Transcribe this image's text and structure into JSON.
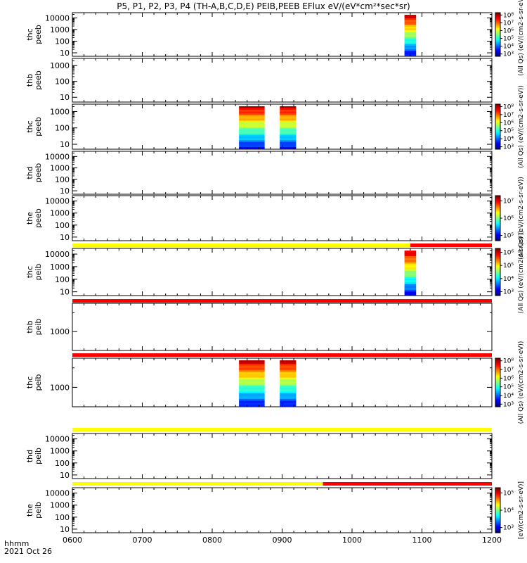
{
  "figure": {
    "title": "P5, P1, P2, P3, P4 (TH-A,B,C,D,E) PEIB,PEEB EFlux eV/(eV*cm²*sec*sr)",
    "time_unit_label": "hhmm",
    "date_label": "2021 Oct 26"
  },
  "chart_data": {
    "type": "heatmap",
    "x_ticks": [
      "0600",
      "0700",
      "0800",
      "0900",
      "1000",
      "1100",
      "1200"
    ],
    "x_range": [
      "0600",
      "1200"
    ],
    "panels": [
      {
        "label": [
          "thc",
          "peeb"
        ],
        "y_ticks": [
          "10",
          "100",
          "1000",
          "10000"
        ],
        "y_scale": "log",
        "colorbar_ticks": [
          "10³",
          "10⁴",
          "10⁵",
          "10⁶",
          "10⁷",
          "10⁸"
        ],
        "colorbar_label": "(All Qs) (eV/(cm2-s-sr-eV))",
        "data_blocks": [
          {
            "start": "1045",
            "end": "1055"
          }
        ]
      },
      {
        "label": [
          "thb",
          "peeb"
        ],
        "y_ticks": [
          "10",
          "100",
          "1000"
        ],
        "y_scale": "log",
        "colorbar_ticks": [],
        "colorbar_label": "",
        "data_blocks": []
      },
      {
        "label": [
          "thc",
          "peeb"
        ],
        "y_ticks": [
          "10",
          "100",
          "1000"
        ],
        "y_scale": "log",
        "colorbar_ticks": [
          "10³",
          "10⁴",
          "10⁵",
          "10⁶",
          "10⁷",
          "10⁸"
        ],
        "colorbar_label": "(All Qs) (eV/(cm2-s-sr-eV))",
        "data_blocks": [
          {
            "start": "0823",
            "end": "0845"
          },
          {
            "start": "0858",
            "end": "0912"
          }
        ]
      },
      {
        "label": [
          "thd",
          "peeb"
        ],
        "y_ticks": [
          "10",
          "100",
          "1000",
          "10000"
        ],
        "y_scale": "log",
        "colorbar_ticks": [],
        "colorbar_label": "",
        "data_blocks": []
      },
      {
        "label": [
          "the",
          "peeb"
        ],
        "y_ticks": [
          "10",
          "100",
          "1000",
          "10000"
        ],
        "y_scale": "log",
        "colorbar_ticks": [
          "10⁵",
          "10⁶",
          "10⁷"
        ],
        "colorbar_label": "(All Qs) (eV/(cm2-s-sr-eV))",
        "data_blocks": []
      },
      {
        "label": [
          "thc",
          "peib"
        ],
        "y_ticks": [
          "10",
          "100",
          "1000",
          "10000"
        ],
        "y_scale": "log",
        "colorbar_ticks": [
          "10³",
          "10⁴",
          "10⁵",
          "10⁶"
        ],
        "colorbar_label": "(All Qs) (eV/(cm2-s-sr-eV))",
        "data_blocks": [
          {
            "start": "1045",
            "end": "1055"
          }
        ]
      },
      {
        "label": [
          "thb",
          "peib"
        ],
        "y_ticks": [
          "1000"
        ],
        "y_scale": "log",
        "colorbar_ticks": [],
        "colorbar_label": "",
        "data_blocks": []
      },
      {
        "label": [
          "thc",
          "peib"
        ],
        "y_ticks": [
          "1000"
        ],
        "y_scale": "log",
        "colorbar_ticks": [
          "10³",
          "10⁴",
          "10⁵",
          "10⁶",
          "10⁷",
          "10⁸"
        ],
        "colorbar_label": "(All Qs) (eV/(cm2-s-sr-eV))",
        "data_blocks": [
          {
            "start": "0823",
            "end": "0845"
          },
          {
            "start": "0858",
            "end": "0912"
          }
        ]
      },
      {
        "label": [
          "thd",
          "peib"
        ],
        "y_ticks": [
          "10",
          "100",
          "1000",
          "10000"
        ],
        "y_scale": "log",
        "colorbar_ticks": [],
        "colorbar_label": "",
        "data_blocks": []
      },
      {
        "label": [
          "the",
          "peib"
        ],
        "y_ticks": [
          "10",
          "100",
          "1000",
          "10000"
        ],
        "y_scale": "log",
        "colorbar_ticks": [
          "10³",
          "10⁴",
          "10⁵"
        ],
        "colorbar_label": "[eV/(cm2-s-sr-eV)]",
        "data_blocks": []
      }
    ],
    "status_bars": [
      {
        "after_panel": 4,
        "segments": [
          {
            "color": "#ffff00",
            "start": "0600",
            "end": "1050"
          },
          {
            "color": "#ff0000",
            "start": "1050",
            "end": "1200"
          }
        ]
      },
      {
        "after_panel": 5,
        "segments": [
          {
            "color": "#ff0000",
            "start": "0600",
            "end": "1200"
          }
        ]
      },
      {
        "after_panel": 6,
        "segments": [
          {
            "color": "#ff0000",
            "start": "0600",
            "end": "1200"
          }
        ]
      },
      {
        "after_panel": 7,
        "segments": [
          {
            "color": "#ffff00",
            "start": "0600",
            "end": "1200"
          }
        ]
      },
      {
        "after_panel": 8,
        "segments": [
          {
            "color": "#ffff00",
            "start": "0600",
            "end": "0935"
          },
          {
            "color": "#ff0000",
            "start": "0935",
            "end": "1200"
          }
        ]
      }
    ]
  }
}
